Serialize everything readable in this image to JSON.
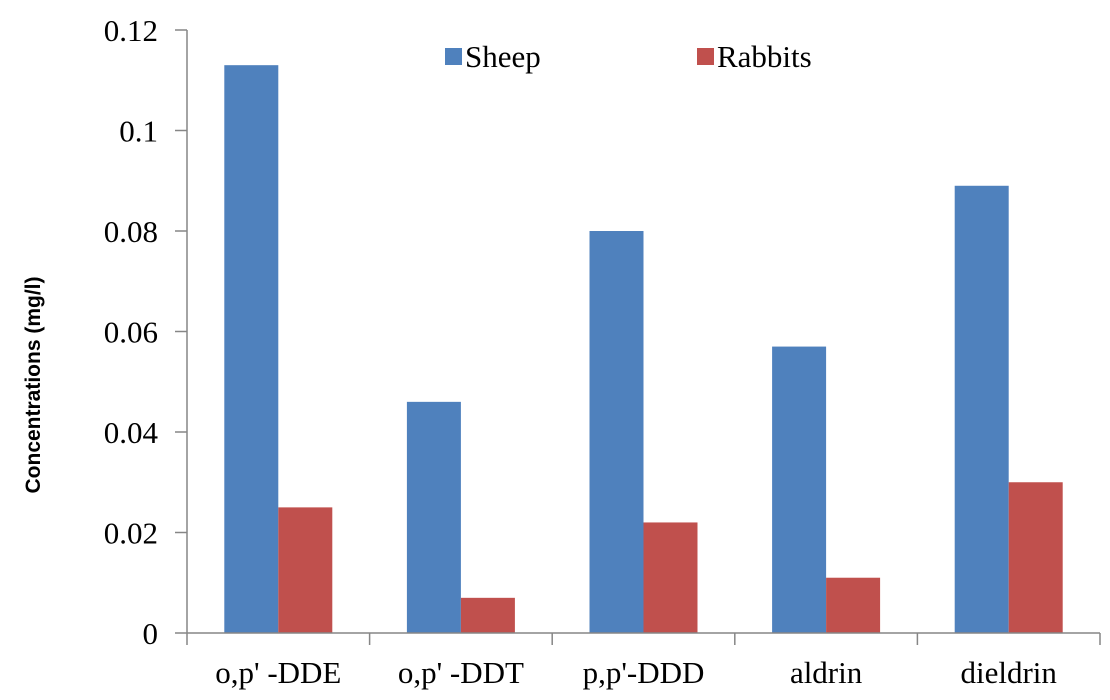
{
  "chart_data": {
    "type": "bar",
    "title": "",
    "xlabel": "",
    "ylabel": "Concentrations (mg/l)",
    "categories": [
      "o,p' -DDE",
      "o,p' -DDT",
      "p,p'-DDD",
      "aldrin",
      "dieldrin"
    ],
    "series": [
      {
        "name": "Sheep",
        "color": "#4F81BD",
        "values": [
          0.113,
          0.046,
          0.08,
          0.057,
          0.089
        ]
      },
      {
        "name": "Rabbits",
        "color": "#C0504D",
        "values": [
          0.025,
          0.007,
          0.022,
          0.011,
          0.03
        ]
      }
    ],
    "ylim": [
      0,
      0.12
    ],
    "yticks": [
      "0",
      "0.02",
      "0.04",
      "0.06",
      "0.08",
      "0.1",
      "0.12"
    ],
    "grid": false,
    "legend_position": "top-center"
  }
}
